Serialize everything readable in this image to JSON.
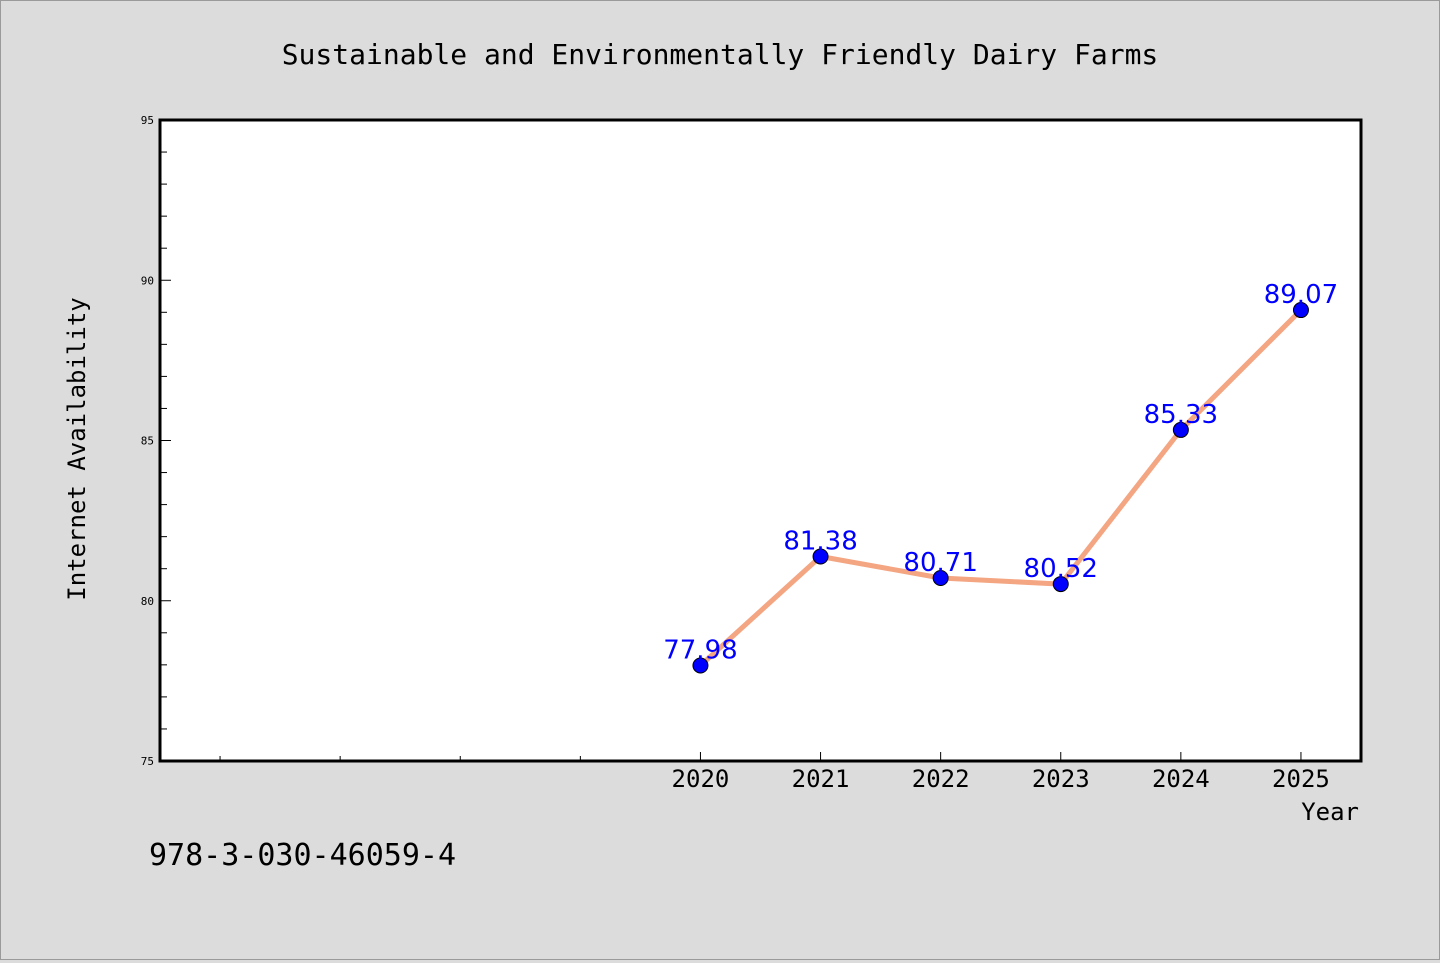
{
  "chart_data": {
    "type": "line",
    "title": "Sustainable and Environmentally Friendly Dairy Farms",
    "xlabel": "Year",
    "ylabel": "Internet Availability",
    "x": [
      2020,
      2021,
      2022,
      2023,
      2024,
      2025
    ],
    "x_tick_labels": [
      "2020",
      "2021",
      "2022",
      "2023",
      "2024",
      "2025"
    ],
    "x_range": [
      2015.5,
      2025.5
    ],
    "ylim": [
      75,
      95
    ],
    "y_major_ticks": [
      75,
      80,
      85,
      90,
      95
    ],
    "y_minor_step": 1,
    "series": [
      {
        "values": [
          77.98,
          81.38,
          80.71,
          80.52,
          85.33,
          89.07
        ],
        "data_labels": [
          "77.98",
          "81.38",
          "80.71",
          "80.52",
          "85.33",
          "89.07"
        ],
        "line_color": "#f4a582",
        "marker_color": "#0000ff",
        "label_color": "#0000ff"
      }
    ],
    "grid": false,
    "legend": "none"
  },
  "annotation": {
    "text": "978-3-030-46059-4"
  },
  "colors": {
    "background": "#dcdcdc",
    "plot_background": "#ffffff",
    "axis": "#000000"
  }
}
